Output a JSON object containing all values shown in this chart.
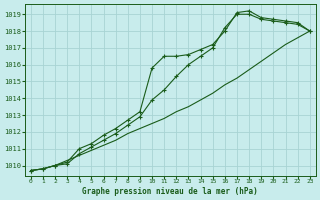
{
  "title": "Graphe pression niveau de la mer (hPa)",
  "background_color": "#c8ecec",
  "grid_color": "#a8d4d4",
  "line_color": "#1a5c1a",
  "xlim": [
    -0.5,
    23.5
  ],
  "ylim": [
    1009.4,
    1019.6
  ],
  "yticks": [
    1010,
    1011,
    1012,
    1013,
    1014,
    1015,
    1016,
    1017,
    1018,
    1019
  ],
  "xticks": [
    0,
    1,
    2,
    3,
    4,
    5,
    6,
    7,
    8,
    9,
    10,
    11,
    12,
    13,
    14,
    15,
    16,
    17,
    18,
    19,
    20,
    21,
    22,
    23
  ],
  "series": [
    {
      "x": [
        0,
        1,
        2,
        3,
        4,
        5,
        6,
        7,
        8,
        9,
        10,
        11,
        12,
        13,
        14,
        15,
        16,
        17,
        18,
        19,
        20,
        21,
        22,
        23
      ],
      "y": [
        1009.7,
        1009.8,
        1010.0,
        1010.3,
        1010.6,
        1010.9,
        1011.2,
        1011.5,
        1011.9,
        1012.2,
        1012.5,
        1012.8,
        1013.2,
        1013.5,
        1013.9,
        1014.3,
        1014.8,
        1015.2,
        1015.7,
        1016.2,
        1016.7,
        1017.2,
        1017.6,
        1018.0
      ],
      "marker": "D",
      "markersize": 2.5,
      "linewidth": 0.8,
      "has_markers": false
    },
    {
      "x": [
        0,
        1,
        2,
        3,
        4,
        5,
        6,
        7,
        8,
        9,
        10,
        11,
        12,
        13,
        14,
        15,
        16,
        17,
        18,
        19,
        20,
        21,
        22,
        23
      ],
      "y": [
        1009.7,
        1009.8,
        1010.0,
        1010.2,
        1011.0,
        1011.3,
        1011.8,
        1012.2,
        1012.7,
        1013.2,
        1015.8,
        1016.5,
        1016.5,
        1016.6,
        1016.9,
        1017.2,
        1018.0,
        1019.1,
        1019.2,
        1018.8,
        1018.7,
        1018.6,
        1018.5,
        1018.0
      ],
      "marker": "D",
      "markersize": 2.5,
      "linewidth": 0.8,
      "has_markers": true
    },
    {
      "x": [
        0,
        1,
        2,
        3,
        4,
        5,
        6,
        7,
        8,
        9,
        10,
        11,
        12,
        13,
        14,
        15,
        16,
        17,
        18,
        19,
        20,
        21,
        22,
        23
      ],
      "y": [
        1009.7,
        1009.8,
        1010.0,
        1010.1,
        1010.7,
        1011.1,
        1011.5,
        1011.9,
        1012.4,
        1012.9,
        1013.9,
        1014.5,
        1015.3,
        1016.0,
        1016.5,
        1017.0,
        1018.2,
        1019.0,
        1019.0,
        1018.7,
        1018.6,
        1018.5,
        1018.4,
        1018.0
      ],
      "marker": "D",
      "markersize": 2.5,
      "linewidth": 0.8,
      "has_markers": true
    }
  ]
}
